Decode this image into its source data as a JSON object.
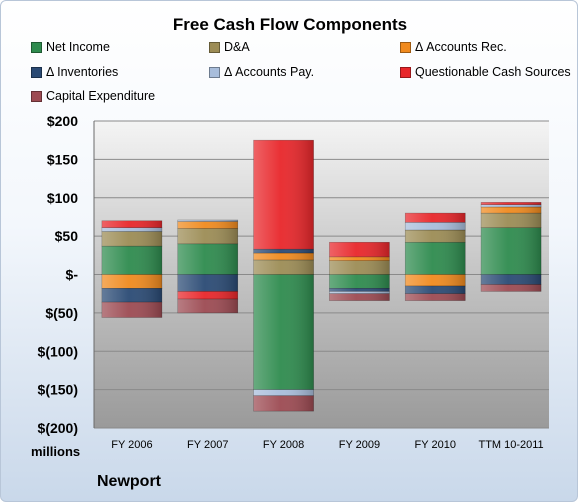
{
  "chart_data": {
    "type": "bar",
    "stacked": true,
    "title": "Free Cash Flow Components",
    "xlabel": "",
    "ylabel": "",
    "unit_label": "millions",
    "ylim": [
      -200,
      200
    ],
    "yticks": [
      200,
      150,
      100,
      50,
      0,
      -50,
      -100,
      -150,
      -200
    ],
    "ytick_labels": [
      "$200",
      "$150",
      "$100",
      "$50",
      "$-",
      "$(50)",
      "$(100)",
      "$(150)",
      "$(200)"
    ],
    "grid": true,
    "legend_position": "top",
    "categories": [
      "FY 2006",
      "FY 2007",
      "FY 2008",
      "FY 2009",
      "FY 2010",
      "TTM 10-2011"
    ],
    "series": [
      {
        "name": "Net Income",
        "color": "#2e8b4e",
        "values": [
          37,
          40,
          -150,
          -18,
          42,
          61
        ]
      },
      {
        "name": "D&A",
        "color": "#9c8c55",
        "values": [
          19,
          20,
          19,
          18,
          16,
          19
        ]
      },
      {
        "name": "Δ Accounts Rec.",
        "color": "#f08a1e",
        "values": [
          -18,
          9,
          9,
          5,
          -15,
          8
        ]
      },
      {
        "name": "Δ Inventories",
        "color": "#2a4a74",
        "values": [
          -18,
          -22,
          5,
          -4,
          -10,
          -13
        ]
      },
      {
        "name": "Δ Accounts Pay.",
        "color": "#a8bddb",
        "values": [
          5,
          2,
          -8,
          -3,
          10,
          3
        ]
      },
      {
        "name": "Questionable Cash Sources",
        "color": "#e8262a",
        "values": [
          9,
          -10,
          142,
          19,
          12,
          3
        ]
      },
      {
        "name": "Capital Expenditure",
        "color": "#9c4a52",
        "values": [
          -20,
          -18,
          -20,
          -9,
          -9,
          -9
        ]
      }
    ]
  },
  "footer": {
    "company": "Newport"
  }
}
